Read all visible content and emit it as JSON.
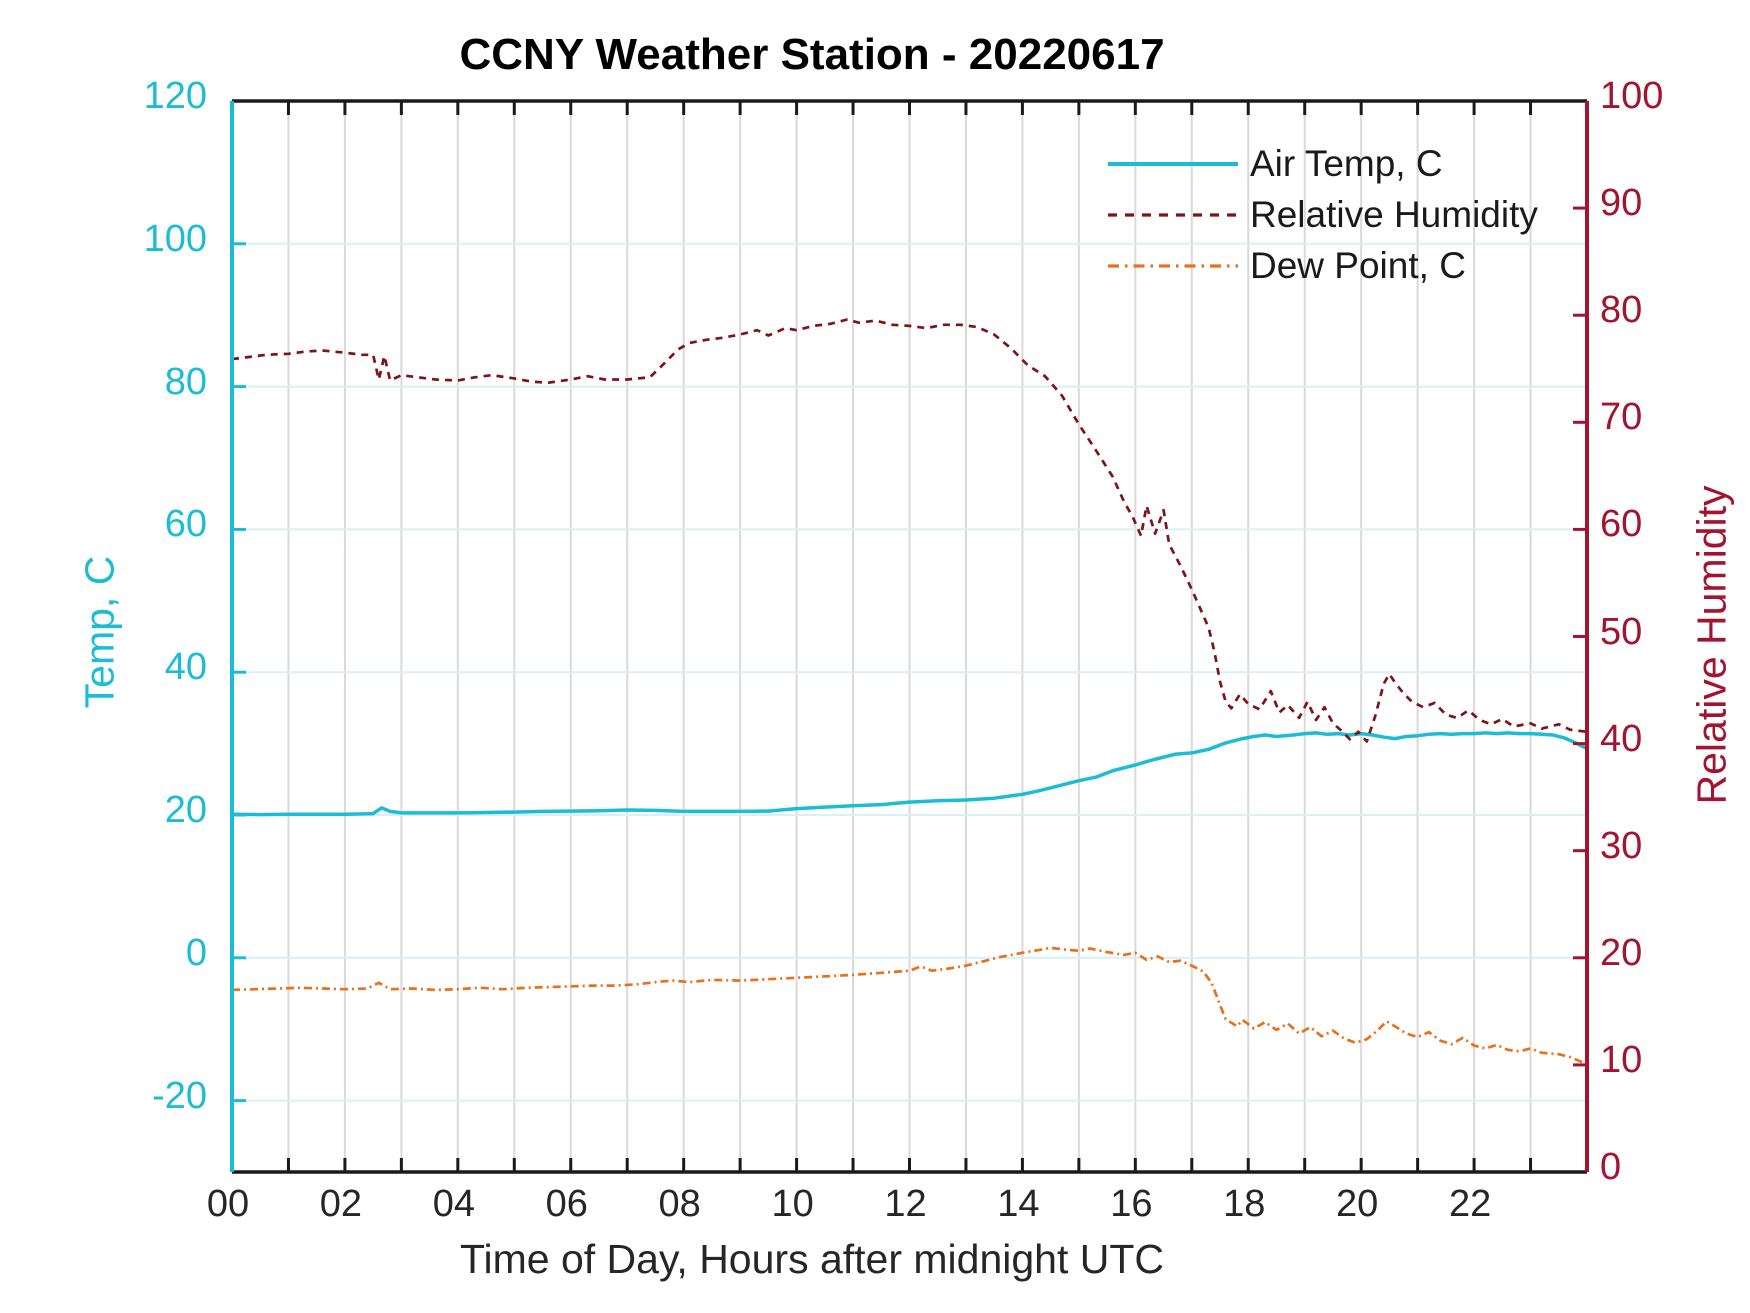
{
  "chart": {
    "title": "CCNY Weather Station - 20220617",
    "x_axis": {
      "label": "Time of Day, Hours after midnight UTC",
      "range": [
        0,
        24
      ],
      "tick_every_hours": 1,
      "labeled_tick_hours": [
        0,
        2,
        4,
        6,
        8,
        10,
        12,
        14,
        16,
        18,
        20,
        22
      ],
      "tick_labels": [
        "00",
        "02",
        "04",
        "06",
        "08",
        "10",
        "12",
        "14",
        "16",
        "18",
        "20",
        "22"
      ],
      "color": "#262626"
    },
    "left_axis": {
      "label": "Temp, C",
      "range": [
        -30,
        120
      ],
      "ticks": [
        -20,
        0,
        20,
        40,
        60,
        80,
        100,
        120
      ],
      "color": "#1CBDD4"
    },
    "right_axis": {
      "label": "Relative Humidity",
      "range": [
        0,
        100
      ],
      "ticks": [
        0,
        10,
        20,
        30,
        40,
        50,
        60,
        70,
        80,
        90,
        100
      ],
      "color": "#A2142F"
    },
    "grid": {
      "vertical_color": "#D9D9D9",
      "horizontal_color": "#D8F0F6",
      "box_color": "#1A1A1A"
    }
  },
  "chart_data": {
    "type": "line",
    "title": "CCNY Weather Station - 20220617",
    "xlabel": "Time of Day, Hours after midnight UTC",
    "x_range_hours": [
      0,
      24
    ],
    "left_ylabel": "Temp, C",
    "left_ylim": [
      -30,
      120
    ],
    "right_ylabel": "Relative Humidity",
    "right_ylim": [
      0,
      100
    ],
    "legend_position": "upper-right-inside, no box",
    "series": [
      {
        "name": "Air Temp, C",
        "axis": "left",
        "style": "solid",
        "color": "#1CBDD4",
        "points": [
          [
            0,
            20.1
          ],
          [
            0.5,
            20.05
          ],
          [
            1,
            20.1
          ],
          [
            1.5,
            20.1
          ],
          [
            2,
            20.1
          ],
          [
            2.5,
            20.2
          ],
          [
            2.65,
            21.0
          ],
          [
            2.8,
            20.5
          ],
          [
            3,
            20.3
          ],
          [
            3.5,
            20.3
          ],
          [
            4,
            20.3
          ],
          [
            4.5,
            20.35
          ],
          [
            5,
            20.4
          ],
          [
            5.5,
            20.5
          ],
          [
            6,
            20.55
          ],
          [
            6.5,
            20.6
          ],
          [
            7,
            20.7
          ],
          [
            7.5,
            20.65
          ],
          [
            8,
            20.5
          ],
          [
            8.5,
            20.5
          ],
          [
            9,
            20.5
          ],
          [
            9.5,
            20.55
          ],
          [
            10,
            20.9
          ],
          [
            10.5,
            21.1
          ],
          [
            11,
            21.3
          ],
          [
            11.5,
            21.45
          ],
          [
            12,
            21.8
          ],
          [
            12.5,
            22.0
          ],
          [
            13,
            22.1
          ],
          [
            13.5,
            22.35
          ],
          [
            14,
            22.9
          ],
          [
            14.3,
            23.4
          ],
          [
            14.6,
            24.0
          ],
          [
            15,
            24.8
          ],
          [
            15.3,
            25.3
          ],
          [
            15.6,
            26.2
          ],
          [
            16,
            27.0
          ],
          [
            16.3,
            27.7
          ],
          [
            16.7,
            28.5
          ],
          [
            17,
            28.7
          ],
          [
            17.3,
            29.2
          ],
          [
            17.6,
            30.1
          ],
          [
            17.9,
            30.7
          ],
          [
            18.1,
            31.0
          ],
          [
            18.3,
            31.2
          ],
          [
            18.5,
            31.0
          ],
          [
            18.8,
            31.2
          ],
          [
            19,
            31.4
          ],
          [
            19.2,
            31.5
          ],
          [
            19.4,
            31.3
          ],
          [
            19.6,
            31.4
          ],
          [
            19.8,
            31.2
          ],
          [
            20,
            31.4
          ],
          [
            20.2,
            31.2
          ],
          [
            20.4,
            30.9
          ],
          [
            20.6,
            30.7
          ],
          [
            20.8,
            31.0
          ],
          [
            21,
            31.1
          ],
          [
            21.2,
            31.3
          ],
          [
            21.4,
            31.4
          ],
          [
            21.6,
            31.3
          ],
          [
            21.8,
            31.4
          ],
          [
            22,
            31.4
          ],
          [
            22.2,
            31.5
          ],
          [
            22.4,
            31.4
          ],
          [
            22.6,
            31.5
          ],
          [
            22.8,
            31.4
          ],
          [
            23,
            31.4
          ],
          [
            23.2,
            31.3
          ],
          [
            23.4,
            31.2
          ],
          [
            23.6,
            30.8
          ],
          [
            23.8,
            30.1
          ],
          [
            24,
            29.3
          ]
        ]
      },
      {
        "name": "Relative Humidity",
        "axis": "right",
        "style": "dashed",
        "color": "#7E1418",
        "points": [
          [
            0,
            75.9
          ],
          [
            0.3,
            76.1
          ],
          [
            0.6,
            76.3
          ],
          [
            1,
            76.4
          ],
          [
            1.3,
            76.6
          ],
          [
            1.6,
            76.7
          ],
          [
            2,
            76.5
          ],
          [
            2.3,
            76.3
          ],
          [
            2.5,
            76.3
          ],
          [
            2.6,
            74.0
          ],
          [
            2.7,
            76.2
          ],
          [
            2.8,
            73.9
          ],
          [
            3,
            74.4
          ],
          [
            3.3,
            74.2
          ],
          [
            3.6,
            74.0
          ],
          [
            4,
            73.9
          ],
          [
            4.3,
            74.2
          ],
          [
            4.6,
            74.4
          ],
          [
            5,
            74.1
          ],
          [
            5.3,
            73.8
          ],
          [
            5.6,
            73.7
          ],
          [
            6,
            74.0
          ],
          [
            6.3,
            74.3
          ],
          [
            6.6,
            74.0
          ],
          [
            7,
            74.0
          ],
          [
            7.4,
            74.2
          ],
          [
            7.6,
            75.2
          ],
          [
            7.9,
            76.8
          ],
          [
            8.1,
            77.4
          ],
          [
            8.4,
            77.7
          ],
          [
            8.7,
            77.9
          ],
          [
            9,
            78.2
          ],
          [
            9.3,
            78.6
          ],
          [
            9.5,
            78.1
          ],
          [
            9.8,
            78.8
          ],
          [
            10,
            78.6
          ],
          [
            10.3,
            79.0
          ],
          [
            10.6,
            79.2
          ],
          [
            10.9,
            79.6
          ],
          [
            11.1,
            79.3
          ],
          [
            11.4,
            79.5
          ],
          [
            11.7,
            79.1
          ],
          [
            12,
            79.0
          ],
          [
            12.3,
            78.8
          ],
          [
            12.6,
            79.1
          ],
          [
            12.9,
            79.1
          ],
          [
            13.2,
            78.9
          ],
          [
            13.5,
            78.2
          ],
          [
            13.8,
            76.9
          ],
          [
            14.1,
            75.3
          ],
          [
            14.4,
            74.3
          ],
          [
            14.7,
            72.5
          ],
          [
            15,
            69.8
          ],
          [
            15.3,
            67.4
          ],
          [
            15.6,
            64.9
          ],
          [
            15.8,
            62.6
          ],
          [
            15.95,
            61.2
          ],
          [
            16.1,
            59.4
          ],
          [
            16.2,
            62.2
          ],
          [
            16.35,
            59.6
          ],
          [
            16.5,
            61.8
          ],
          [
            16.6,
            58.6
          ],
          [
            16.8,
            56.6
          ],
          [
            17,
            54.4
          ],
          [
            17.15,
            52.6
          ],
          [
            17.3,
            50.8
          ],
          [
            17.4,
            48.6
          ],
          [
            17.5,
            45.8
          ],
          [
            17.6,
            43.9
          ],
          [
            17.7,
            43.3
          ],
          [
            17.85,
            44.6
          ],
          [
            18,
            43.7
          ],
          [
            18.2,
            43.2
          ],
          [
            18.4,
            44.9
          ],
          [
            18.55,
            42.9
          ],
          [
            18.7,
            43.6
          ],
          [
            18.9,
            42.4
          ],
          [
            19.05,
            43.9
          ],
          [
            19.2,
            42.2
          ],
          [
            19.35,
            43.4
          ],
          [
            19.5,
            41.9
          ],
          [
            19.65,
            41.2
          ],
          [
            19.8,
            40.4
          ],
          [
            19.95,
            41.1
          ],
          [
            20.1,
            40.2
          ],
          [
            20.25,
            42.6
          ],
          [
            20.4,
            45.6
          ],
          [
            20.5,
            46.5
          ],
          [
            20.6,
            45.7
          ],
          [
            20.75,
            44.7
          ],
          [
            20.9,
            43.9
          ],
          [
            21.1,
            43.4
          ],
          [
            21.3,
            43.8
          ],
          [
            21.5,
            42.7
          ],
          [
            21.7,
            42.4
          ],
          [
            21.9,
            43.1
          ],
          [
            22.1,
            42.2
          ],
          [
            22.3,
            41.8
          ],
          [
            22.5,
            42.3
          ],
          [
            22.7,
            41.6
          ],
          [
            23,
            41.9
          ],
          [
            23.2,
            41.4
          ],
          [
            23.5,
            41.8
          ],
          [
            23.7,
            41.3
          ],
          [
            24,
            41.1
          ]
        ]
      },
      {
        "name": "Dew Point, C",
        "axis": "left",
        "style": "dashdot",
        "color": "#E8711C",
        "points": [
          [
            0,
            -4.5
          ],
          [
            0.4,
            -4.4
          ],
          [
            0.8,
            -4.3
          ],
          [
            1.2,
            -4.2
          ],
          [
            1.6,
            -4.3
          ],
          [
            2,
            -4.4
          ],
          [
            2.4,
            -4.3
          ],
          [
            2.6,
            -3.5
          ],
          [
            2.8,
            -4.4
          ],
          [
            3.2,
            -4.3
          ],
          [
            3.6,
            -4.5
          ],
          [
            4,
            -4.4
          ],
          [
            4.4,
            -4.2
          ],
          [
            4.8,
            -4.4
          ],
          [
            5.2,
            -4.2
          ],
          [
            5.6,
            -4.1
          ],
          [
            6,
            -4.0
          ],
          [
            6.4,
            -3.9
          ],
          [
            6.8,
            -3.9
          ],
          [
            7.2,
            -3.7
          ],
          [
            7.5,
            -3.4
          ],
          [
            7.8,
            -3.2
          ],
          [
            8.1,
            -3.4
          ],
          [
            8.5,
            -3.1
          ],
          [
            9,
            -3.2
          ],
          [
            9.5,
            -3.0
          ],
          [
            10,
            -2.8
          ],
          [
            10.5,
            -2.6
          ],
          [
            11,
            -2.4
          ],
          [
            11.5,
            -2.1
          ],
          [
            12,
            -1.8
          ],
          [
            12.2,
            -1.2
          ],
          [
            12.4,
            -1.8
          ],
          [
            12.7,
            -1.5
          ],
          [
            13,
            -1.1
          ],
          [
            13.3,
            -0.5
          ],
          [
            13.6,
            0.1
          ],
          [
            14,
            0.7
          ],
          [
            14.3,
            1.1
          ],
          [
            14.5,
            1.4
          ],
          [
            14.8,
            1.1
          ],
          [
            15,
            1.0
          ],
          [
            15.2,
            1.3
          ],
          [
            15.5,
            0.8
          ],
          [
            15.8,
            0.4
          ],
          [
            16,
            0.7
          ],
          [
            16.2,
            -0.3
          ],
          [
            16.4,
            0.2
          ],
          [
            16.6,
            -0.6
          ],
          [
            16.8,
            -0.4
          ],
          [
            17,
            -1.1
          ],
          [
            17.2,
            -1.9
          ],
          [
            17.35,
            -3.5
          ],
          [
            17.5,
            -6.6
          ],
          [
            17.6,
            -8.6
          ],
          [
            17.8,
            -9.6
          ],
          [
            17.9,
            -8.7
          ],
          [
            18.1,
            -9.9
          ],
          [
            18.3,
            -9.0
          ],
          [
            18.5,
            -10.1
          ],
          [
            18.7,
            -9.2
          ],
          [
            18.9,
            -10.6
          ],
          [
            19.1,
            -9.7
          ],
          [
            19.3,
            -11.0
          ],
          [
            19.5,
            -10.2
          ],
          [
            19.7,
            -11.3
          ],
          [
            19.9,
            -11.9
          ],
          [
            20.1,
            -11.4
          ],
          [
            20.3,
            -10.1
          ],
          [
            20.45,
            -8.9
          ],
          [
            20.6,
            -9.6
          ],
          [
            20.8,
            -10.6
          ],
          [
            21,
            -11.1
          ],
          [
            21.2,
            -10.4
          ],
          [
            21.4,
            -11.6
          ],
          [
            21.6,
            -12.1
          ],
          [
            21.8,
            -11.2
          ],
          [
            22,
            -12.3
          ],
          [
            22.2,
            -12.7
          ],
          [
            22.4,
            -12.2
          ],
          [
            22.6,
            -12.9
          ],
          [
            22.8,
            -13.1
          ],
          [
            23,
            -12.7
          ],
          [
            23.2,
            -13.3
          ],
          [
            23.5,
            -13.5
          ],
          [
            23.7,
            -13.9
          ],
          [
            24,
            -14.9
          ]
        ]
      }
    ]
  }
}
